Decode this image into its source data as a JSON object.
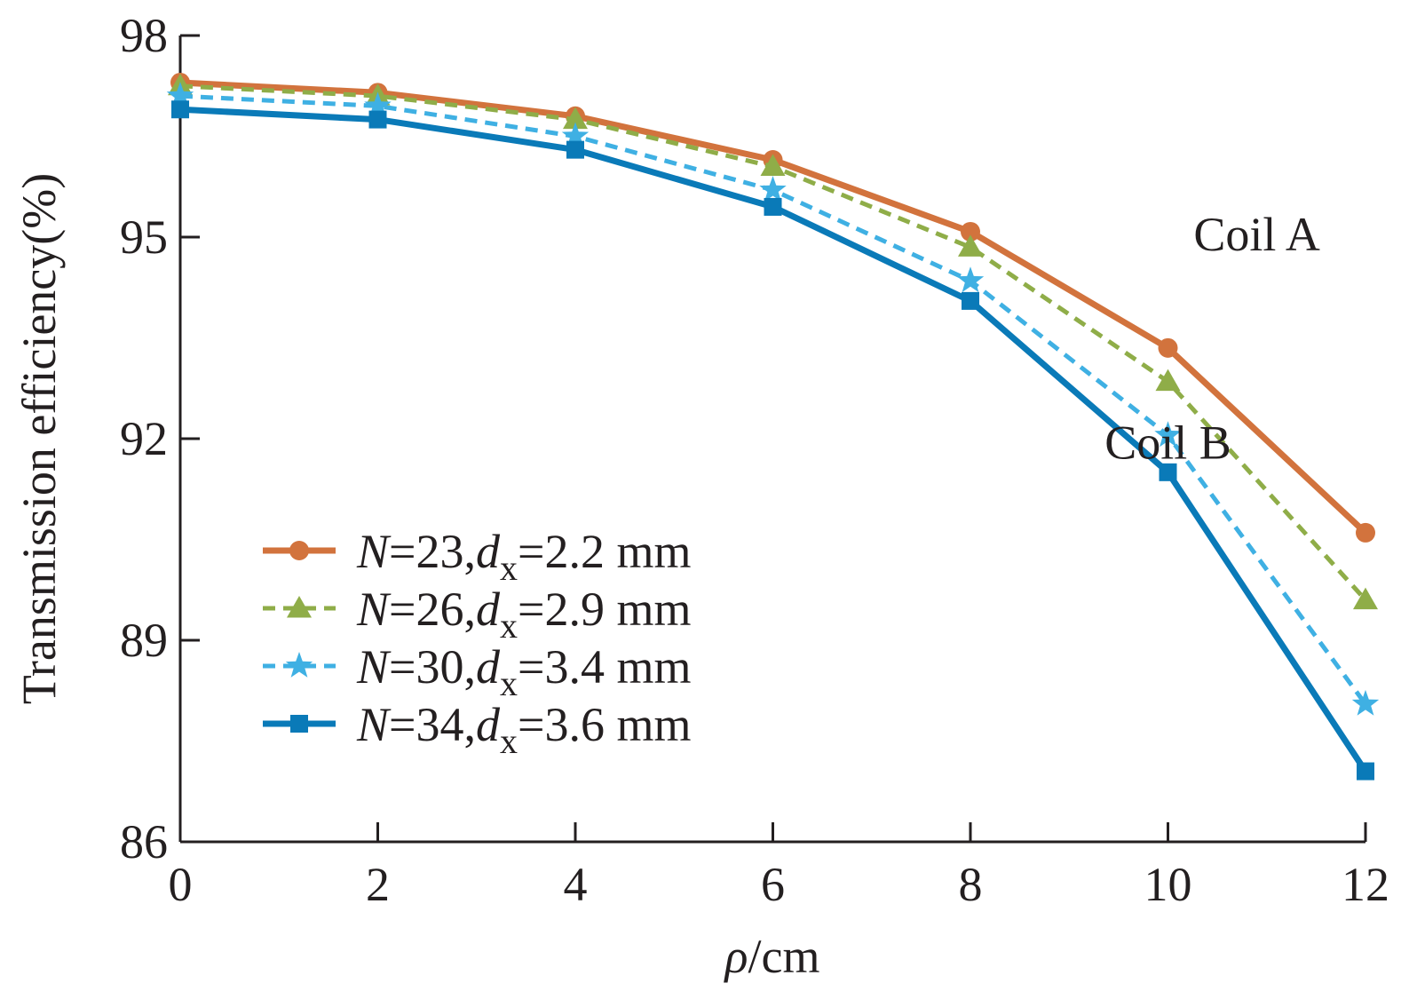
{
  "chart_data": {
    "type": "line",
    "xlabel": {
      "symbol": "ρ",
      "unit": "/cm"
    },
    "ylabel": "Transmission efficiency(%)",
    "xlim": [
      0,
      12
    ],
    "ylim": [
      86,
      98
    ],
    "xticks": [
      "0",
      "2",
      "4",
      "6",
      "8",
      "10",
      "12"
    ],
    "yticks": [
      "86",
      "89",
      "92",
      "95",
      "98"
    ],
    "x": [
      0,
      2,
      4,
      6,
      8,
      10,
      12
    ],
    "series": [
      {
        "id": "s1",
        "name": {
          "N": "23",
          "dx": "2.2 mm"
        },
        "color": "#d2733d",
        "dash": "solid",
        "marker": "circle",
        "values": [
          97.3,
          97.15,
          96.8,
          96.15,
          95.08,
          93.35,
          90.6
        ]
      },
      {
        "id": "s2",
        "name": {
          "N": "26",
          "dx": "2.9 mm"
        },
        "color": "#8fad48",
        "dash": "dashed",
        "marker": "triangle",
        "values": [
          97.25,
          97.1,
          96.75,
          96.05,
          94.85,
          92.85,
          89.6
        ]
      },
      {
        "id": "s3",
        "name": {
          "N": "30",
          "dx": "3.4 mm"
        },
        "color": "#3fb0e3",
        "dash": "dashed",
        "marker": "star",
        "values": [
          97.1,
          96.95,
          96.5,
          95.7,
          94.35,
          92.05,
          88.05
        ]
      },
      {
        "id": "s4",
        "name": {
          "N": "34",
          "dx": "3.6 mm"
        },
        "color": "#0a7ab8",
        "dash": "solid",
        "marker": "square",
        "values": [
          96.9,
          96.75,
          96.3,
          95.45,
          94.05,
          91.5,
          87.05
        ]
      }
    ],
    "annotations": [
      {
        "id": "coilA",
        "text": "Coil A",
        "x": 10.9,
        "y": 94.8
      },
      {
        "id": "coilB",
        "text": "Coil B",
        "x": 10.0,
        "y": 91.7
      }
    ],
    "legend": {
      "position": "lower-left",
      "equals": "=",
      "comma": ",",
      "N_symbol": "N",
      "d_symbol": "d",
      "d_subscript": "x"
    },
    "grid": false
  }
}
